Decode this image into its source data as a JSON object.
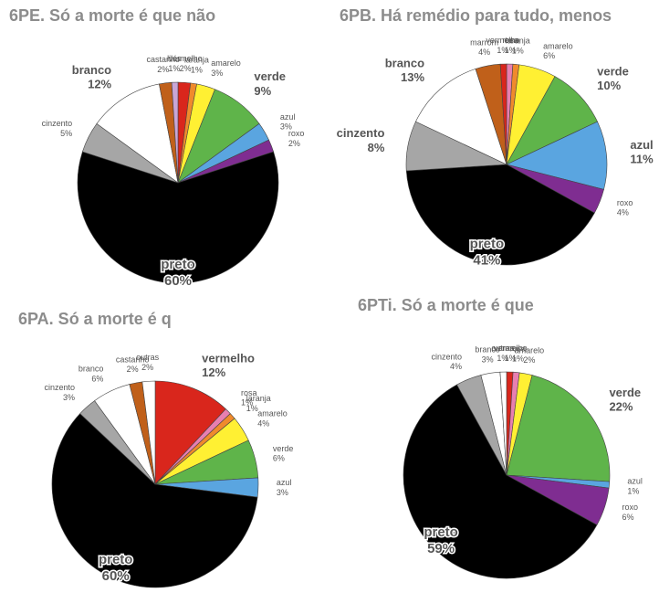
{
  "chart_data": [
    {
      "type": "pie",
      "title": "6PE. Só a morte é que não",
      "categories": [
        "vermelho",
        "laranja",
        "amarelo",
        "verde",
        "azul",
        "roxo",
        "preto",
        "cinzento",
        "branco",
        "castanho",
        "lilás"
      ],
      "values": [
        2,
        1,
        3,
        9,
        3,
        2,
        60,
        5,
        12,
        2,
        1
      ],
      "value_labels": [
        "2%",
        "1%",
        "3%",
        "9%",
        "3%",
        "2%",
        "60%",
        "5%",
        "12%",
        "2%",
        "1%"
      ],
      "colors": [
        "#d9261c",
        "#f08a2c",
        "#fff033",
        "#5fb44a",
        "#5aa5e0",
        "#7f2d91",
        "#000000",
        "#a6a6a6",
        "#ffffff",
        "#c0601a",
        "#c9a6d6"
      ]
    },
    {
      "type": "pie",
      "title": "6PB. Há remédio para tudo, menos",
      "categories": [
        "rosa",
        "laranja",
        "amarelo",
        "verde",
        "azul",
        "roxo",
        "preto",
        "cinzento",
        "branco",
        "marrom",
        "vermelho"
      ],
      "values": [
        1,
        1,
        6,
        10,
        11,
        4,
        41,
        8,
        13,
        4,
        1
      ],
      "value_labels": [
        "1%",
        "1%",
        "6%",
        "10%",
        "11%",
        "4%",
        "41%",
        "8%",
        "13%",
        "4%",
        "1%"
      ],
      "colors": [
        "#e87fb0",
        "#f08a2c",
        "#fff033",
        "#5fb44a",
        "#5aa5e0",
        "#7f2d91",
        "#000000",
        "#a6a6a6",
        "#ffffff",
        "#c0601a",
        "#d9261c"
      ]
    },
    {
      "type": "pie",
      "title": "6PA. Só a morte é q",
      "categories": [
        "vermelho",
        "rosa",
        "laranja",
        "amarelo",
        "verde",
        "azul",
        "preto",
        "cinzento",
        "branco",
        "castanho",
        "outras"
      ],
      "values": [
        12,
        1,
        1,
        4,
        6,
        3,
        60,
        3,
        6,
        2,
        2
      ],
      "value_labels": [
        "12%",
        "1%",
        "1%",
        "4%",
        "6%",
        "3%",
        "60%",
        "3%",
        "6%",
        "2%",
        "2%"
      ],
      "colors": [
        "#d9261c",
        "#e87fb0",
        "#f08a2c",
        "#fff033",
        "#5fb44a",
        "#5aa5e0",
        "#000000",
        "#a6a6a6",
        "#ffffff",
        "#c0601a",
        "#ffffff"
      ]
    },
    {
      "type": "pie",
      "title": "6PTi. Só a morte é que",
      "categories": [
        "vermelho",
        "rosa",
        "amarelo",
        "verde",
        "azul",
        "roxo",
        "preto",
        "cinzento",
        "branco",
        "outras"
      ],
      "values": [
        1,
        1,
        2,
        22,
        1,
        6,
        59,
        4,
        3,
        1
      ],
      "value_labels": [
        "1%",
        "1%",
        "2%",
        "22%",
        "1%",
        "6%",
        "59%",
        "4%",
        "3%",
        "1%"
      ],
      "colors": [
        "#d9261c",
        "#e87fb0",
        "#fff033",
        "#5fb44a",
        "#5aa5e0",
        "#7f2d91",
        "#000000",
        "#a6a6a6",
        "#ffffff",
        "#ffffff"
      ]
    }
  ]
}
